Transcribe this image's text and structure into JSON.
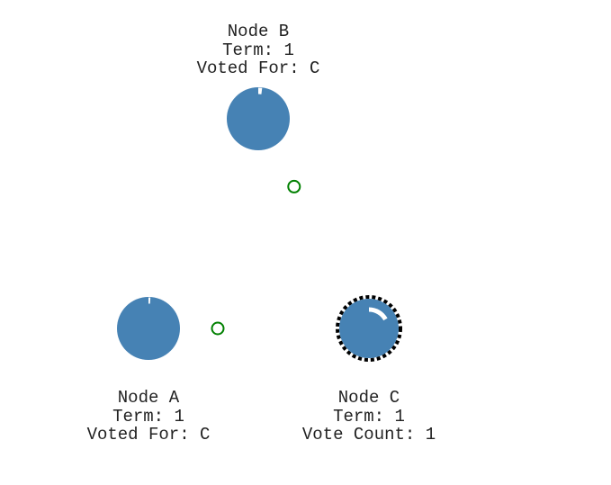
{
  "colors": {
    "node_fill": "#4682b4",
    "timer_arc": "#ffffff",
    "candidate_ring": "#000000",
    "message": "#008000",
    "text": "#222222"
  },
  "nodes": {
    "b": {
      "name": "Node B",
      "term": "Term: 1",
      "status": "Voted For: C",
      "state": "follower",
      "timer_fraction": 0.02
    },
    "a": {
      "name": "Node A",
      "term": "Term: 1",
      "status": "Voted For: C",
      "state": "follower",
      "timer_fraction": 0.01
    },
    "c": {
      "name": "Node C",
      "term": "Term: 1",
      "status": "Vote Count: 1",
      "state": "candidate",
      "timer_fraction": 0.17
    }
  },
  "messages": [
    {
      "from": "b",
      "to": "c",
      "type": "vote-response",
      "progress": 0.26
    },
    {
      "from": "a",
      "to": "c",
      "type": "vote-response",
      "progress": 0.24
    }
  ]
}
